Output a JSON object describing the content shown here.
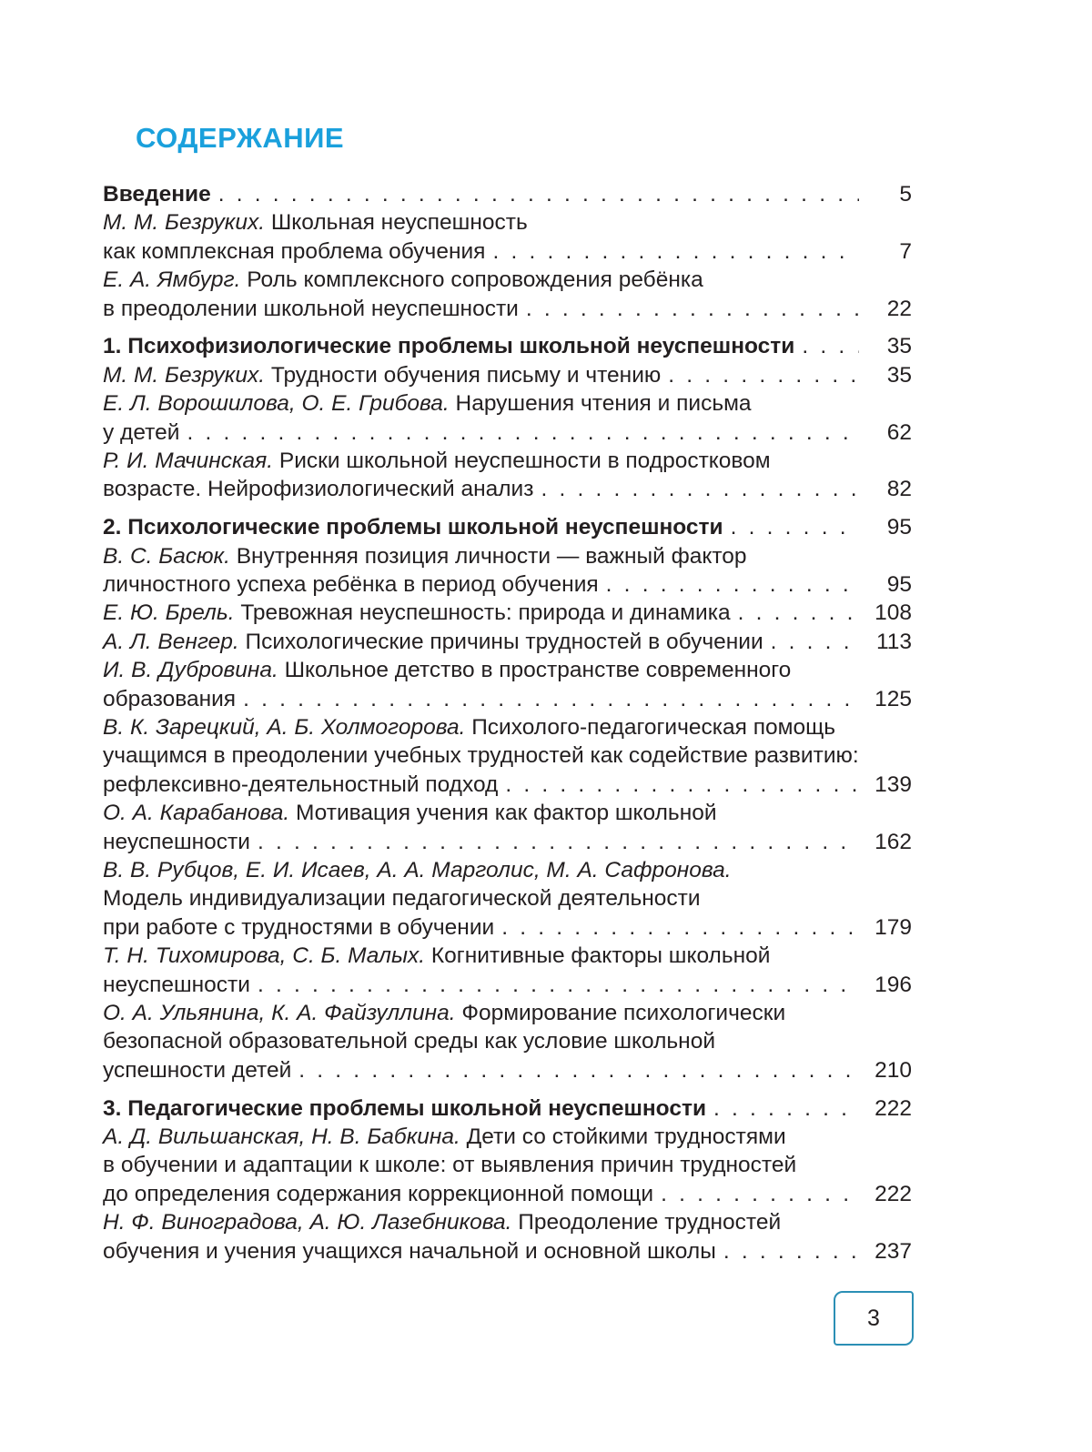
{
  "title": "СОДЕРЖАНИЕ",
  "page_number": "3",
  "colors": {
    "title": "#1aa0dc",
    "page_box_border": "#2b8fb5"
  },
  "toc": [
    {
      "heading": true,
      "lines": [
        "Введение"
      ],
      "page": "5"
    },
    {
      "author": "М. М. Безруких.",
      "lines": [
        " Школьная неуспешность",
        "как комплексная проблема обучения"
      ],
      "page": "7"
    },
    {
      "author": "Е. А. Ямбург.",
      "lines": [
        " Роль комплексного сопровождения ребёнка",
        "в преодолении школьной неуспешности"
      ],
      "page": "22"
    },
    {
      "heading": true,
      "section": true,
      "lines": [
        "1. Психофизиологические проблемы школьной неуспешности"
      ],
      "page": "35"
    },
    {
      "author": "М. М. Безруких.",
      "lines": [
        " Трудности обучения письму и чтению"
      ],
      "page": "35"
    },
    {
      "author": "Е. Л. Ворошилова, О. Е. Грибова.",
      "lines": [
        " Нарушения чтения и письма",
        "у детей"
      ],
      "page": "62"
    },
    {
      "author": "Р. И. Мачинская.",
      "lines": [
        " Риски школьной неуспешности в подростковом",
        "возрасте. Нейрофизиологический анализ"
      ],
      "page": "82"
    },
    {
      "heading": true,
      "section": true,
      "lines": [
        "2. Психологические проблемы школьной неуспешности"
      ],
      "page": "95"
    },
    {
      "author": "В. С. Басюк.",
      "lines": [
        " Внутренняя позиция личности — важный фактор",
        "личностного успеха ребёнка в период обучения"
      ],
      "page": "95"
    },
    {
      "author": "Е. Ю. Брель.",
      "lines": [
        " Тревожная неуспешность: природа и динамика"
      ],
      "page": "108"
    },
    {
      "author": "А. Л. Венгер.",
      "lines": [
        " Психологические причины трудностей в обучении"
      ],
      "page": "113"
    },
    {
      "author": "И. В. Дубровина.",
      "lines": [
        " Школьное детство в пространстве современного",
        "образования"
      ],
      "page": "125"
    },
    {
      "author": "В. К. Зарецкий, А. Б. Холмогорова.",
      "lines": [
        " Психолого-педагогическая помощь",
        "учащимся в преодолении учебных трудностей как содействие развитию:",
        "рефлексивно-деятельностный подход"
      ],
      "page": "139"
    },
    {
      "author": "О. А. Карабанова.",
      "lines": [
        " Мотивация учения как фактор школьной",
        "неуспешности"
      ],
      "page": "162"
    },
    {
      "author": "В. В. Рубцов, Е. И. Исаев, А. А. Марголис, М. А. Сафронова.",
      "lines": [
        "",
        "Модель индивидуализации педагогической деятельности",
        "при работе с трудностями в обучении"
      ],
      "page": "179"
    },
    {
      "author": "Т. Н. Тихомирова, С. Б. Малых.",
      "lines": [
        " Когнитивные факторы школьной",
        "неуспешности"
      ],
      "page": "196"
    },
    {
      "author": "О. А. Ульянина, К. А. Файзуллина.",
      "lines": [
        " Формирование психологически",
        "безопасной образовательной среды как условие школьной",
        "успешности детей"
      ],
      "page": "210"
    },
    {
      "heading": true,
      "section": true,
      "lines": [
        "3. Педагогические проблемы школьной неуспешности"
      ],
      "page": "222"
    },
    {
      "author": "А. Д. Вильшанская, Н. В. Бабкина.",
      "lines": [
        " Дети со стойкими трудностями",
        "в обучении и адаптации к школе: от выявления причин трудностей",
        "до определения содержания коррекционной помощи"
      ],
      "page": "222"
    },
    {
      "author": "Н. Ф. Виноградова, А. Ю. Лазебникова.",
      "lines": [
        " Преодоление трудностей",
        "обучения и учения учащихся начальной и основной школы"
      ],
      "page": "237"
    }
  ]
}
